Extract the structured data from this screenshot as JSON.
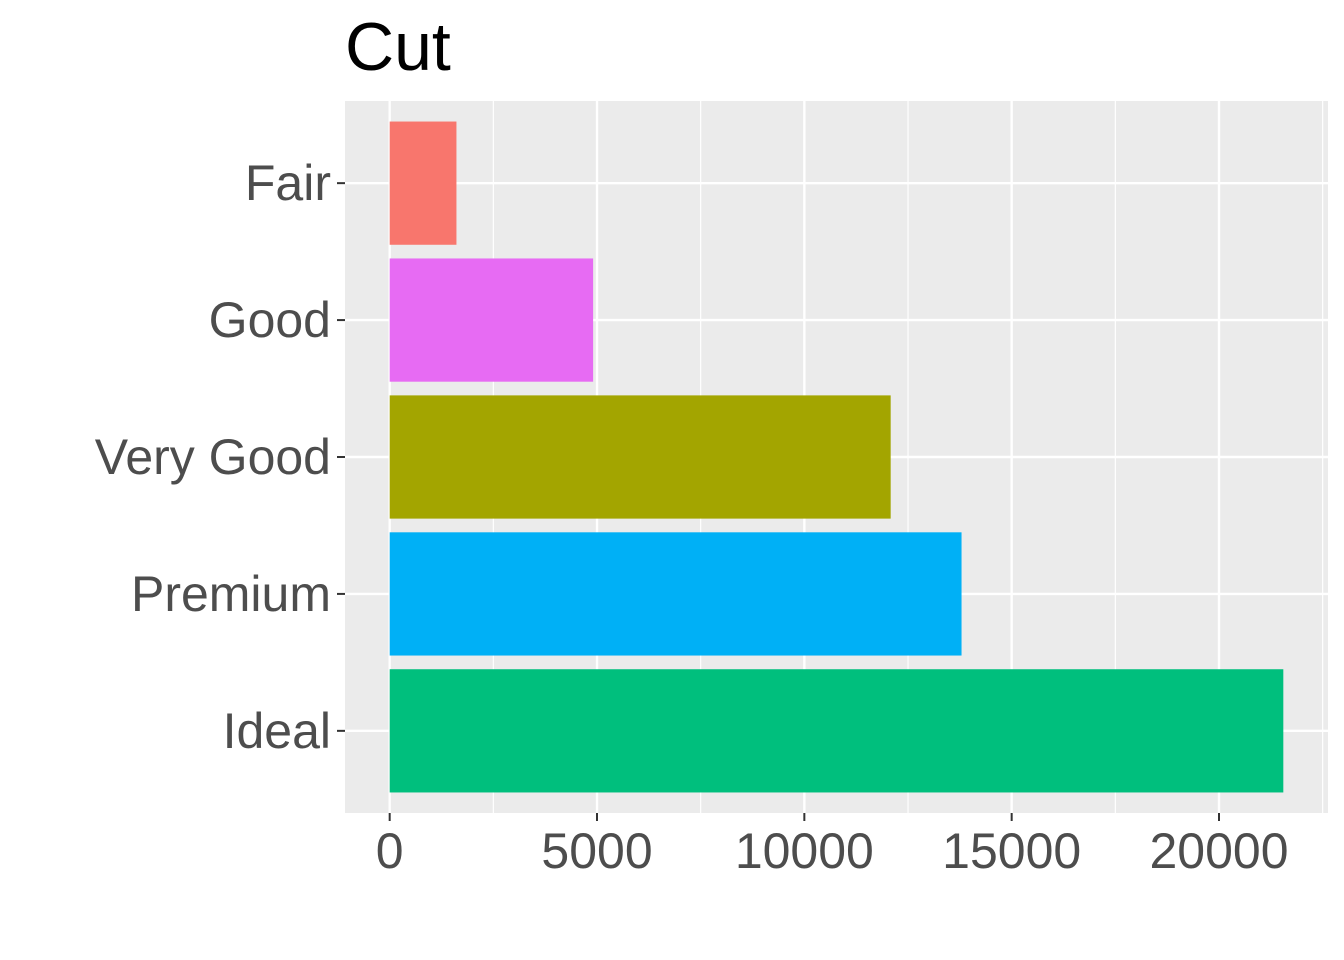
{
  "chart_data": {
    "type": "bar",
    "orientation": "horizontal",
    "title": "Cut",
    "xlabel": "",
    "ylabel": "",
    "categories": [
      "Fair",
      "Good",
      "Very Good",
      "Premium",
      "Ideal"
    ],
    "values": [
      1610,
      4906,
      12082,
      13791,
      21551
    ],
    "colors": [
      "#F8766D",
      "#E76BF3",
      "#A3A500",
      "#00B0F6",
      "#00BF7D"
    ],
    "panel_background": "#EBEBEB",
    "grid_color": "#FFFFFF",
    "xlim": [
      -1077.55,
      22628.55
    ],
    "x_ticks": [
      0,
      5000,
      10000,
      15000,
      20000
    ],
    "x_tick_labels": [
      "0",
      "5000",
      "10000",
      "15000",
      "20000"
    ],
    "grid": true,
    "legend": "none"
  }
}
